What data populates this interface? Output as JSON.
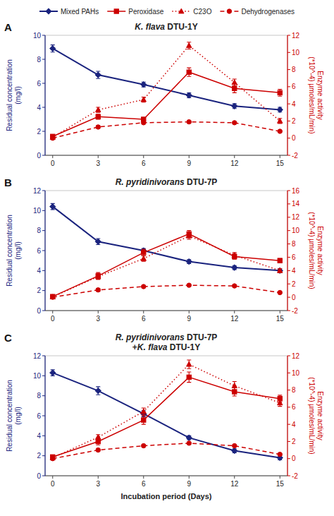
{
  "chart_data": [
    {
      "type": "line",
      "title": "K. flava DTU-1Y",
      "annotations": [
        "A"
      ],
      "x": [
        0,
        3,
        6,
        9,
        12,
        15
      ],
      "xlim": [
        -0.5,
        15.5
      ],
      "xticks": [
        0,
        3,
        6,
        9,
        12,
        15
      ],
      "ylim": [
        0,
        10
      ],
      "yticks": [
        0,
        2,
        4,
        6,
        8,
        10
      ],
      "y2lim": [
        -2,
        12
      ],
      "y2ticks": [
        -2,
        0,
        2,
        4,
        6,
        8,
        10,
        12
      ],
      "y_label": "Residual concentration\n(mg/l)",
      "y2_label": "Enzyme activity\n(*10^-4) µmoles/mL/min)",
      "grid": false,
      "legend": "top",
      "series": [
        {
          "name": "Mixed PAHs",
          "color": "#1a237e",
          "marker": "diamond",
          "line_style": "solid",
          "values": [
            8.9,
            6.7,
            5.9,
            5.0,
            4.1,
            3.8
          ],
          "errors": [
            0.3,
            0.3,
            0.2,
            0.2,
            0.2,
            0.2
          ]
        },
        {
          "name": "Peroxidase",
          "color": "#cc0000",
          "marker": "square",
          "line_style": "solid",
          "axis": "y2",
          "values": [
            0.2,
            2.5,
            2.2,
            7.7,
            5.8,
            5.3
          ],
          "errors": [
            0.1,
            0.3,
            0.2,
            0.5,
            0.5,
            0.4
          ]
        },
        {
          "name": "C23O",
          "color": "#cc0000",
          "marker": "triangle",
          "line_style": "dotted",
          "axis": "y2",
          "values": [
            0.1,
            3.3,
            4.5,
            10.8,
            6.5,
            2.0
          ],
          "errors": [
            0.05,
            0.3,
            0.3,
            0.4,
            0.4,
            0.3
          ]
        },
        {
          "name": "Dehydrogenases",
          "color": "#cc0000",
          "marker": "circle",
          "line_style": "dashed",
          "axis": "y2",
          "values": [
            0.0,
            1.3,
            1.8,
            1.9,
            1.8,
            0.8
          ],
          "errors": [
            0.05,
            0.15,
            0.1,
            0.1,
            0.1,
            0.1
          ]
        }
      ]
    },
    {
      "type": "line",
      "title": "R. pyridinivorans DTU-7P",
      "annotations": [
        "B"
      ],
      "x": [
        0,
        3,
        6,
        9,
        12,
        15
      ],
      "xlim": [
        -0.5,
        15.5
      ],
      "xticks": [
        0,
        3,
        6,
        9,
        12,
        15
      ],
      "ylim": [
        0,
        12
      ],
      "yticks": [
        0,
        2,
        4,
        6,
        8,
        10,
        12
      ],
      "y2lim": [
        -2,
        16
      ],
      "y2ticks": [
        -2,
        0,
        2,
        4,
        6,
        8,
        10,
        12,
        14,
        16
      ],
      "y_label": "Residual concentration\n(mg/l)",
      "y2_label": "Enzyme activity\n(*10^-4) µmoles/mL/min)",
      "grid": false,
      "series": [
        {
          "name": "Mixed PAHs",
          "color": "#1a237e",
          "marker": "diamond",
          "line_style": "solid",
          "values": [
            10.4,
            6.9,
            6.0,
            4.9,
            4.3,
            4.0
          ],
          "errors": [
            0.3,
            0.3,
            0.2,
            0.2,
            0.2,
            0.2
          ]
        },
        {
          "name": "Peroxidase",
          "color": "#cc0000",
          "marker": "square",
          "line_style": "solid",
          "axis": "y2",
          "values": [
            0.1,
            3.2,
            6.7,
            9.5,
            6.1,
            5.5
          ],
          "errors": [
            0.05,
            0.5,
            0.5,
            0.5,
            0.4,
            0.3
          ]
        },
        {
          "name": "C23O",
          "color": "#cc0000",
          "marker": "triangle",
          "line_style": "dotted",
          "axis": "y2",
          "values": [
            0.05,
            3.1,
            5.8,
            9.2,
            6.3,
            4.0
          ],
          "errors": [
            0.05,
            0.4,
            0.4,
            0.5,
            0.4,
            0.3
          ]
        },
        {
          "name": "Dehydrogenases",
          "color": "#cc0000",
          "marker": "circle",
          "line_style": "dashed",
          "axis": "y2",
          "values": [
            0.0,
            1.1,
            1.6,
            1.8,
            1.7,
            0.7
          ],
          "errors": [
            0.05,
            0.2,
            0.1,
            0.1,
            0.1,
            0.1
          ]
        }
      ]
    },
    {
      "type": "line",
      "title": "R. pyridinivorans DTU-7P\n+K. flava DTU-1Y",
      "annotations": [
        "C"
      ],
      "x": [
        0,
        3,
        6,
        9,
        12,
        15
      ],
      "xlim": [
        -0.5,
        15.5
      ],
      "xticks": [
        0,
        3,
        6,
        9,
        12,
        15
      ],
      "ylim": [
        0,
        12
      ],
      "yticks": [
        0,
        2,
        4,
        6,
        8,
        10,
        12
      ],
      "y2lim": [
        -2,
        12
      ],
      "y2ticks": [
        -2,
        0,
        2,
        4,
        6,
        8,
        10,
        12
      ],
      "x_label": "Incubation period (Days)",
      "y_label": "Residual concentration\n(mg/l)",
      "y2_label": "Enzyme activity\n(*10^-4) µmoles/mL/min)",
      "grid": false,
      "series": [
        {
          "name": "Mixed PAHs",
          "color": "#1a237e",
          "marker": "diamond",
          "line_style": "solid",
          "values": [
            10.3,
            8.5,
            6.2,
            3.8,
            2.5,
            1.8
          ],
          "errors": [
            0.3,
            0.4,
            0.3,
            0.2,
            0.2,
            0.2
          ]
        },
        {
          "name": "Peroxidase",
          "color": "#cc0000",
          "marker": "square",
          "line_style": "solid",
          "axis": "y2",
          "values": [
            0.2,
            2.0,
            4.5,
            9.5,
            7.8,
            7.0
          ],
          "errors": [
            0.1,
            0.4,
            0.5,
            0.6,
            0.5,
            0.4
          ]
        },
        {
          "name": "C23O",
          "color": "#cc0000",
          "marker": "triangle",
          "line_style": "dotted",
          "axis": "y2",
          "values": [
            0.1,
            2.5,
            5.5,
            11.0,
            8.5,
            6.5
          ],
          "errors": [
            0.05,
            0.3,
            0.4,
            0.5,
            0.5,
            0.4
          ]
        },
        {
          "name": "Dehydrogenases",
          "color": "#cc0000",
          "marker": "circle",
          "line_style": "dashed",
          "axis": "y2",
          "values": [
            0.0,
            1.0,
            1.5,
            1.8,
            1.5,
            0.5
          ],
          "errors": [
            0.05,
            0.1,
            0.1,
            0.1,
            0.1,
            0.05
          ]
        }
      ]
    }
  ]
}
